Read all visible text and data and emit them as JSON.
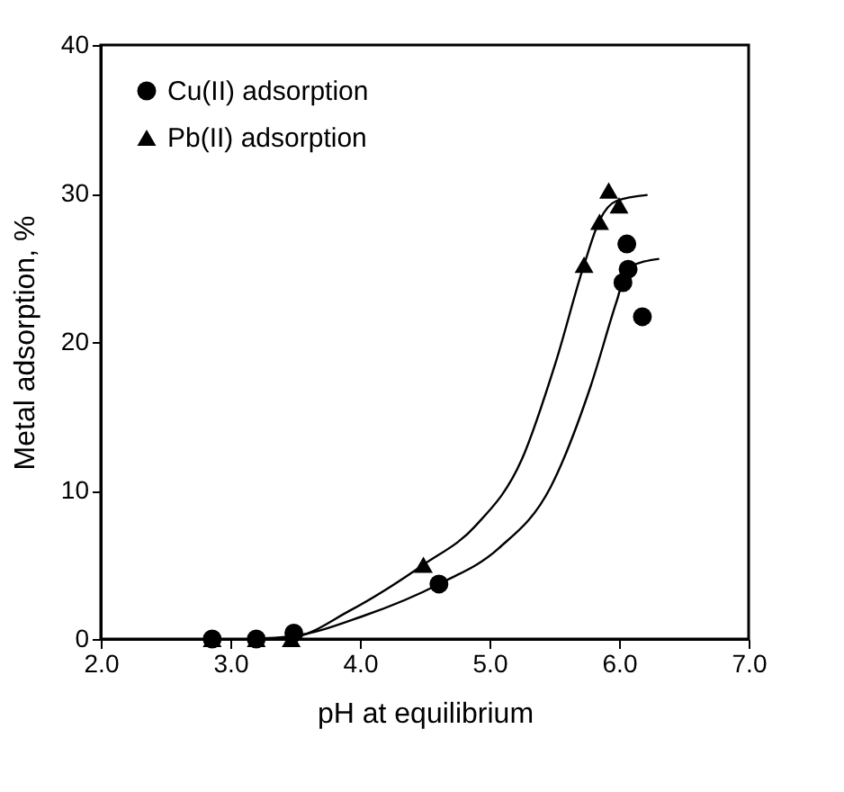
{
  "chart_data": {
    "type": "scatter",
    "xlabel": "pH at equilibrium",
    "ylabel": "Metal adsorption, %",
    "xlim": [
      2.0,
      7.0
    ],
    "xticks": [
      {
        "value": 2,
        "label": "2.0"
      },
      {
        "value": 3,
        "label": "3.0"
      },
      {
        "value": 4,
        "label": "4.0"
      },
      {
        "value": 5,
        "label": "5.0"
      },
      {
        "value": 6,
        "label": "6.0"
      },
      {
        "value": 7,
        "label": "7.0"
      }
    ],
    "ylim": [
      0,
      40
    ],
    "yticks": [
      0,
      10,
      20,
      30,
      40
    ],
    "grid": false,
    "legend": "top left",
    "series": [
      {
        "name": "Cu(II) adsorption",
        "color": "#000000",
        "marker": "circle",
        "x": [
          2.86,
          3.2,
          3.49,
          4.61,
          6.03,
          6.07,
          6.06,
          6.18
        ],
        "values": [
          0,
          0,
          0.4,
          3.7,
          24.0,
          24.9,
          26.6,
          21.7
        ]
      },
      {
        "name": "Pb(II) adsorption",
        "color": "#000000",
        "marker": "triangle",
        "x": [
          2.86,
          3.2,
          3.47,
          4.49,
          5.73,
          5.85,
          5.92,
          6.0
        ],
        "values": [
          0,
          0,
          0,
          5.0,
          25.2,
          28.1,
          30.2,
          29.2
        ]
      },
      {
        "type": "line",
        "color": "#000000",
        "line_style": "solid",
        "x": [
          3.13,
          3.49,
          4.01,
          4.61,
          5.07,
          5.47,
          5.78,
          5.98,
          6.07,
          6.31
        ],
        "values": [
          0,
          0.2,
          1.5,
          3.7,
          6.1,
          10.2,
          17.0,
          22.7,
          25.0,
          25.6
        ]
      },
      {
        "type": "line",
        "color": "#000000",
        "line_style": "solid",
        "x": [
          3.13,
          3.47,
          3.92,
          4.49,
          4.89,
          5.25,
          5.51,
          5.73,
          5.85,
          5.98,
          6.22
        ],
        "values": [
          0,
          0.1,
          1.9,
          5.0,
          7.6,
          12.1,
          18.6,
          25.2,
          28.2,
          29.5,
          29.9
        ]
      }
    ]
  }
}
